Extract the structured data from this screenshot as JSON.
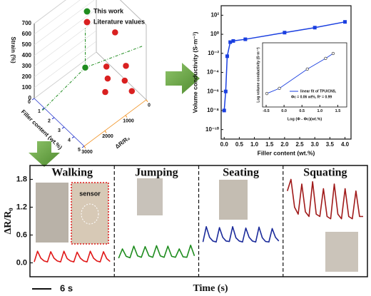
{
  "chart_data": [
    {
      "type": "scatter3d",
      "x_label": "Filler content (wt.%)",
      "y_label": "ΔR/R₀",
      "z_label": "Strain (%)",
      "xlim": [
        0,
        5
      ],
      "ylim": [
        0,
        3000
      ],
      "zlim": [
        0,
        700
      ],
      "xticks": [
        0,
        1,
        2,
        3,
        4,
        5
      ],
      "yticks": [
        0,
        1000,
        2000,
        3000
      ],
      "zticks": [
        0,
        100,
        200,
        300,
        400,
        500,
        600,
        700
      ],
      "series": [
        {
          "name": "This work",
          "color": "#1e8c1e",
          "x": [
            2
          ],
          "y": [
            1500
          ],
          "z": [
            250
          ]
        },
        {
          "name": "Literature values",
          "color": "#d92020",
          "x": [
            4,
            4.5,
            3.5,
            4,
            3,
            4.8,
            2.5
          ],
          "y": [
            500,
            800,
            1200,
            1500,
            900,
            600,
            300
          ],
          "z": [
            300,
            250,
            350,
            200,
            150,
            150,
            450
          ]
        }
      ]
    },
    {
      "type": "line",
      "log_y": true,
      "x_label": "Filler content (wt.%)",
      "y_label": "Volume conductivity (S·m⁻¹)",
      "x": [
        0,
        0.05,
        0.1,
        0.2,
        0.3,
        0.7,
        2,
        3,
        4
      ],
      "xlim": [
        -0.1,
        4.2
      ],
      "ylim": [
        1e-11,
        1000
      ],
      "xticks": [
        {
          "value": 0,
          "label": "0.0"
        },
        0.5,
        {
          "value": 1,
          "label": "1.0"
        },
        1.5,
        {
          "value": 2,
          "label": "2.0"
        },
        2.5,
        {
          "value": 3,
          "label": "3.0"
        },
        3.5,
        {
          "value": 4,
          "label": "4.0"
        }
      ],
      "yticks": [
        {
          "value": 1e-10,
          "label": "10⁻¹⁰"
        },
        {
          "value": 1e-08,
          "label": "10⁻⁸"
        },
        {
          "value": 1e-06,
          "label": "10⁻⁶"
        },
        {
          "value": 0.0001,
          "label": "10⁻⁴"
        },
        {
          "value": 0.01,
          "label": "10⁻²"
        },
        {
          "value": 1,
          "label": "10⁰"
        },
        {
          "value": 100,
          "label": "10²"
        }
      ],
      "series": [
        {
          "color": "#1a3fe0",
          "values": [
            1e-08,
            1e-06,
            0.005,
            0.15,
            0.2,
            0.3,
            1.5,
            5,
            20
          ]
        }
      ]
    },
    {
      "type": "line",
      "x_label": "Log (Φ - Φc)(wt.%)",
      "y_label": "Log volume conductivity (S·m⁻¹)",
      "annotation": "Φc = 0.06 wt%, R² = 0.99",
      "x": [
        -0.48,
        -0.13,
        0.65,
        1.16,
        1.37
      ],
      "xlim": [
        -0.6,
        1.75
      ],
      "ylim": [
        -1,
        2
      ],
      "xticks": [
        -0.5,
        {
          "value": 0,
          "label": "0.0"
        },
        0.5,
        {
          "value": 1,
          "label": "1.0"
        },
        1.5
      ],
      "series": [
        {
          "name": "linear fit of TPU/CNS,",
          "color": "#1a3fe0",
          "values": [
            -0.37,
            -0.13,
            0.77,
            1.27,
            1.5
          ]
        }
      ]
    },
    {
      "type": "panel-line",
      "y_label": "ΔR/R₀",
      "x_label": "Time (s)",
      "scale_bar_label": "6 s",
      "annotation": "sensor",
      "ylim": [
        -0.3,
        2.1
      ],
      "yticks": [
        {
          "value": 0,
          "label": "0.0"
        },
        0.6,
        1.2,
        1.8
      ],
      "series": [
        {
          "name": "Walking",
          "color": "#e01818",
          "values": [
            0.02,
            0.25,
            0.1,
            0.04,
            0.02,
            0.24,
            0.1,
            0.04,
            0.02,
            0.25,
            0.09,
            0.04,
            0.02,
            0.23,
            0.1,
            0.04,
            0.02,
            0.25,
            0.1,
            0.04,
            0.02,
            0.24,
            0.09,
            0.03
          ]
        },
        {
          "name": "Jumping",
          "color": "#1e8c1e",
          "values": [
            0.1,
            0.3,
            0.14,
            0.11,
            0.36,
            0.15,
            0.12,
            0.35,
            0.15,
            0.12,
            0.37,
            0.15,
            0.12,
            0.36,
            0.14,
            0.12,
            0.3,
            0.13,
            0.12,
            0.38,
            0.15
          ]
        },
        {
          "name": "Seating",
          "color": "#1a2a9a",
          "values": [
            0.45,
            0.78,
            0.55,
            0.47,
            0.45,
            0.76,
            0.55,
            0.47,
            0.46,
            0.78,
            0.54,
            0.47,
            0.45,
            0.75,
            0.55,
            0.47,
            0.45,
            0.77,
            0.54,
            0.46,
            0.45,
            0.74,
            0.55,
            0.47
          ]
        },
        {
          "name": "Squating",
          "color": "#a01a1a",
          "values": [
            1.55,
            1.8,
            1.2,
            1.05,
            1.7,
            1.1,
            1.0,
            1.75,
            1.05,
            1.0,
            1.6,
            1.0,
            0.95,
            1.7,
            1.05,
            0.95,
            1.6,
            1.0,
            0.95,
            1.55,
            1.0,
            1.0
          ]
        }
      ]
    }
  ]
}
